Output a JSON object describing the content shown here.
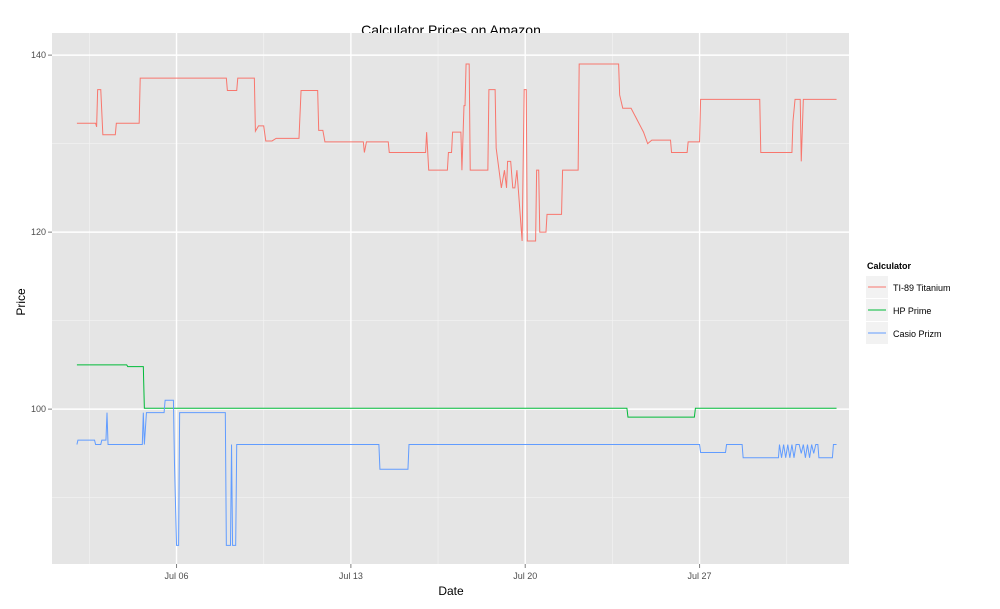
{
  "chart_data": {
    "type": "line",
    "title": "Calculator Prices on Amazon",
    "xlabel": "Date",
    "ylabel": "Price",
    "x_axis": {
      "type": "date",
      "range": [
        "2014-07-01",
        "2014-08-02"
      ],
      "ticks": [
        {
          "value": "2014-07-06",
          "label": "Jul 06"
        },
        {
          "value": "2014-07-13",
          "label": "Jul 13"
        },
        {
          "value": "2014-07-20",
          "label": "Jul 20"
        },
        {
          "value": "2014-07-27",
          "label": "Jul 27"
        }
      ]
    },
    "y_axis": {
      "range": [
        82.5,
        142.5
      ],
      "ticks": [
        100,
        120,
        140
      ]
    },
    "grid": true,
    "background_color": "#e5e5e5",
    "legend": {
      "title": "Calculator",
      "placement": "right"
    },
    "series": [
      {
        "name": "TI-89 Titanium",
        "color": "#f8766d",
        "points": [
          [
            "2014-07-02 00:00",
            132.3
          ],
          [
            "2014-07-02 18:00",
            132.3
          ],
          [
            "2014-07-02 19:00",
            131.9
          ],
          [
            "2014-07-02 20:00",
            136.1
          ],
          [
            "2014-07-02 23:00",
            136.1
          ],
          [
            "2014-07-03 01:00",
            131.0
          ],
          [
            "2014-07-03 13:00",
            131.0
          ],
          [
            "2014-07-03 14:00",
            132.3
          ],
          [
            "2014-07-04 12:00",
            132.3
          ],
          [
            "2014-07-04 13:00",
            137.4
          ],
          [
            "2014-07-08 00:00",
            137.4
          ],
          [
            "2014-07-08 01:00",
            136.0
          ],
          [
            "2014-07-08 10:00",
            136.0
          ],
          [
            "2014-07-08 11:00",
            137.4
          ],
          [
            "2014-07-09 03:00",
            137.4
          ],
          [
            "2014-07-09 04:00",
            131.4
          ],
          [
            "2014-07-09 07:00",
            132.0
          ],
          [
            "2014-07-09 12:00",
            132.0
          ],
          [
            "2014-07-09 14:00",
            130.3
          ],
          [
            "2014-07-09 20:00",
            130.3
          ],
          [
            "2014-07-10 00:00",
            130.6
          ],
          [
            "2014-07-10 22:00",
            130.6
          ],
          [
            "2014-07-11 00:00",
            136.0
          ],
          [
            "2014-07-11 16:00",
            136.0
          ],
          [
            "2014-07-11 17:00",
            131.5
          ],
          [
            "2014-07-11 21:00",
            131.5
          ],
          [
            "2014-07-11 23:00",
            130.2
          ],
          [
            "2014-07-13 12:00",
            130.2
          ],
          [
            "2014-07-13 13:00",
            129.0
          ],
          [
            "2014-07-13 15:00",
            130.2
          ],
          [
            "2014-07-14 12:00",
            130.2
          ],
          [
            "2014-07-14 13:00",
            129.0
          ],
          [
            "2014-07-16 00:00",
            129.0
          ],
          [
            "2014-07-16 01:00",
            131.3
          ],
          [
            "2014-07-16 03:00",
            127.0
          ],
          [
            "2014-07-16 21:00",
            127.0
          ],
          [
            "2014-07-16 22:00",
            129.0
          ],
          [
            "2014-07-17 01:00",
            129.0
          ],
          [
            "2014-07-17 02:00",
            131.3
          ],
          [
            "2014-07-17 10:00",
            131.3
          ],
          [
            "2014-07-17 11:00",
            127.0
          ],
          [
            "2014-07-17 13:00",
            134.3
          ],
          [
            "2014-07-17 14:00",
            134.3
          ],
          [
            "2014-07-17 15:00",
            139.0
          ],
          [
            "2014-07-17 18:00",
            139.0
          ],
          [
            "2014-07-17 19:00",
            127.0
          ],
          [
            "2014-07-18 12:00",
            127.0
          ],
          [
            "2014-07-18 13:00",
            136.1
          ],
          [
            "2014-07-18 19:00",
            136.1
          ],
          [
            "2014-07-18 20:00",
            129.5
          ],
          [
            "2014-07-19 01:00",
            125.0
          ],
          [
            "2014-07-19 04:00",
            127.0
          ],
          [
            "2014-07-19 06:00",
            125.0
          ],
          [
            "2014-07-19 07:00",
            128.0
          ],
          [
            "2014-07-19 10:00",
            128.0
          ],
          [
            "2014-07-19 12:00",
            125.0
          ],
          [
            "2014-07-19 14:00",
            125.0
          ],
          [
            "2014-07-19 16:00",
            127.0
          ],
          [
            "2014-07-19 21:00",
            119.0
          ],
          [
            "2014-07-19 23:00",
            136.1
          ],
          [
            "2014-07-20 01:00",
            136.1
          ],
          [
            "2014-07-20 02:00",
            119.0
          ],
          [
            "2014-07-20 10:00",
            119.0
          ],
          [
            "2014-07-20 11:00",
            127.0
          ],
          [
            "2014-07-20 13:00",
            127.0
          ],
          [
            "2014-07-20 14:00",
            120.0
          ],
          [
            "2014-07-20 20:00",
            120.0
          ],
          [
            "2014-07-20 21:00",
            122.0
          ],
          [
            "2014-07-21 11:00",
            122.0
          ],
          [
            "2014-07-21 12:00",
            127.0
          ],
          [
            "2014-07-22 03:00",
            127.0
          ],
          [
            "2014-07-22 04:00",
            139.0
          ],
          [
            "2014-07-23 18:00",
            139.0
          ],
          [
            "2014-07-23 19:00",
            135.5
          ],
          [
            "2014-07-23 22:00",
            134.0
          ],
          [
            "2014-07-24 06:00",
            134.0
          ],
          [
            "2014-07-24 18:00",
            131.3
          ],
          [
            "2014-07-24 22:00",
            130.0
          ],
          [
            "2014-07-25 02:00",
            130.4
          ],
          [
            "2014-07-25 20:00",
            130.4
          ],
          [
            "2014-07-25 21:00",
            129.0
          ],
          [
            "2014-07-26 12:00",
            129.0
          ],
          [
            "2014-07-26 13:00",
            130.2
          ],
          [
            "2014-07-27 00:00",
            130.2
          ],
          [
            "2014-07-27 01:00",
            135.0
          ],
          [
            "2014-07-29 10:00",
            135.0
          ],
          [
            "2014-07-29 11:00",
            129.0
          ],
          [
            "2014-07-30 17:00",
            129.0
          ],
          [
            "2014-07-30 18:00",
            132.5
          ],
          [
            "2014-07-30 20:00",
            135.0
          ],
          [
            "2014-07-31 01:00",
            135.0
          ],
          [
            "2014-07-31 02:00",
            128.0
          ],
          [
            "2014-07-31 04:00",
            135.0
          ],
          [
            "2014-08-01 12:00",
            135.0
          ]
        ]
      },
      {
        "name": "HP Prime",
        "color": "#00ba38",
        "points": [
          [
            "2014-07-02 00:00",
            105.0
          ],
          [
            "2014-07-04 00:00",
            105.0
          ],
          [
            "2014-07-04 01:00",
            104.8
          ],
          [
            "2014-07-04 16:00",
            104.8
          ],
          [
            "2014-07-04 17:00",
            100.1
          ],
          [
            "2014-07-24 02:00",
            100.1
          ],
          [
            "2014-07-24 03:00",
            99.1
          ],
          [
            "2014-07-26 19:00",
            99.1
          ],
          [
            "2014-07-26 20:00",
            100.1
          ],
          [
            "2014-08-01 12:00",
            100.1
          ]
        ]
      },
      {
        "name": "Casio Prizm",
        "color": "#619cff",
        "points": [
          [
            "2014-07-02 00:00",
            96.0
          ],
          [
            "2014-07-02 01:00",
            96.5
          ],
          [
            "2014-07-02 17:00",
            96.5
          ],
          [
            "2014-07-02 18:00",
            96.0
          ],
          [
            "2014-07-02 23:00",
            96.0
          ],
          [
            "2014-07-03 00:00",
            96.5
          ],
          [
            "2014-07-03 04:00",
            96.5
          ],
          [
            "2014-07-03 05:00",
            99.6
          ],
          [
            "2014-07-03 06:00",
            96.0
          ],
          [
            "2014-07-04 15:00",
            96.0
          ],
          [
            "2014-07-04 16:00",
            99.6
          ],
          [
            "2014-07-04 17:00",
            96.0
          ],
          [
            "2014-07-04 19:00",
            99.6
          ],
          [
            "2014-07-05 12:00",
            99.6
          ],
          [
            "2014-07-05 13:00",
            101.0
          ],
          [
            "2014-07-05 21:00",
            101.0
          ],
          [
            "2014-07-05 22:00",
            94.0
          ],
          [
            "2014-07-06 00:00",
            84.6
          ],
          [
            "2014-07-06 02:00",
            84.6
          ],
          [
            "2014-07-06 03:00",
            99.6
          ],
          [
            "2014-07-07 23:00",
            99.6
          ],
          [
            "2014-07-08 00:00",
            84.6
          ],
          [
            "2014-07-08 04:00",
            84.6
          ],
          [
            "2014-07-08 05:00",
            96.0
          ],
          [
            "2014-07-08 06:00",
            84.6
          ],
          [
            "2014-07-08 09:00",
            84.6
          ],
          [
            "2014-07-08 10:00",
            96.0
          ],
          [
            "2014-07-14 03:00",
            96.0
          ],
          [
            "2014-07-14 04:00",
            93.2
          ],
          [
            "2014-07-15 07:00",
            93.2
          ],
          [
            "2014-07-15 08:00",
            96.0
          ],
          [
            "2014-07-27 00:00",
            96.0
          ],
          [
            "2014-07-27 01:00",
            95.1
          ],
          [
            "2014-07-28 01:00",
            95.1
          ],
          [
            "2014-07-28 02:00",
            96.0
          ],
          [
            "2014-07-28 17:00",
            96.0
          ],
          [
            "2014-07-28 18:00",
            94.5
          ],
          [
            "2014-07-30 04:00",
            94.5
          ],
          [
            "2014-07-30 05:00",
            96.0
          ],
          [
            "2014-07-30 07:00",
            94.5
          ],
          [
            "2014-07-30 09:00",
            96.0
          ],
          [
            "2014-07-30 11:00",
            94.5
          ],
          [
            "2014-07-30 13:00",
            96.0
          ],
          [
            "2014-07-30 15:00",
            94.5
          ],
          [
            "2014-07-30 17:00",
            96.0
          ],
          [
            "2014-07-30 19:00",
            94.5
          ],
          [
            "2014-07-30 21:00",
            96.0
          ],
          [
            "2014-07-31 00:00",
            96.0
          ],
          [
            "2014-07-31 02:00",
            95.0
          ],
          [
            "2014-07-31 04:00",
            96.0
          ],
          [
            "2014-07-31 06:00",
            94.5
          ],
          [
            "2014-07-31 08:00",
            96.0
          ],
          [
            "2014-07-31 10:00",
            94.5
          ],
          [
            "2014-07-31 12:00",
            96.0
          ],
          [
            "2014-07-31 14:00",
            95.0
          ],
          [
            "2014-07-31 16:00",
            96.0
          ],
          [
            "2014-07-31 18:00",
            96.0
          ],
          [
            "2014-07-31 19:00",
            94.5
          ],
          [
            "2014-08-01 08:00",
            94.5
          ],
          [
            "2014-08-01 09:00",
            96.0
          ],
          [
            "2014-08-01 12:00",
            96.0
          ]
        ]
      }
    ]
  }
}
